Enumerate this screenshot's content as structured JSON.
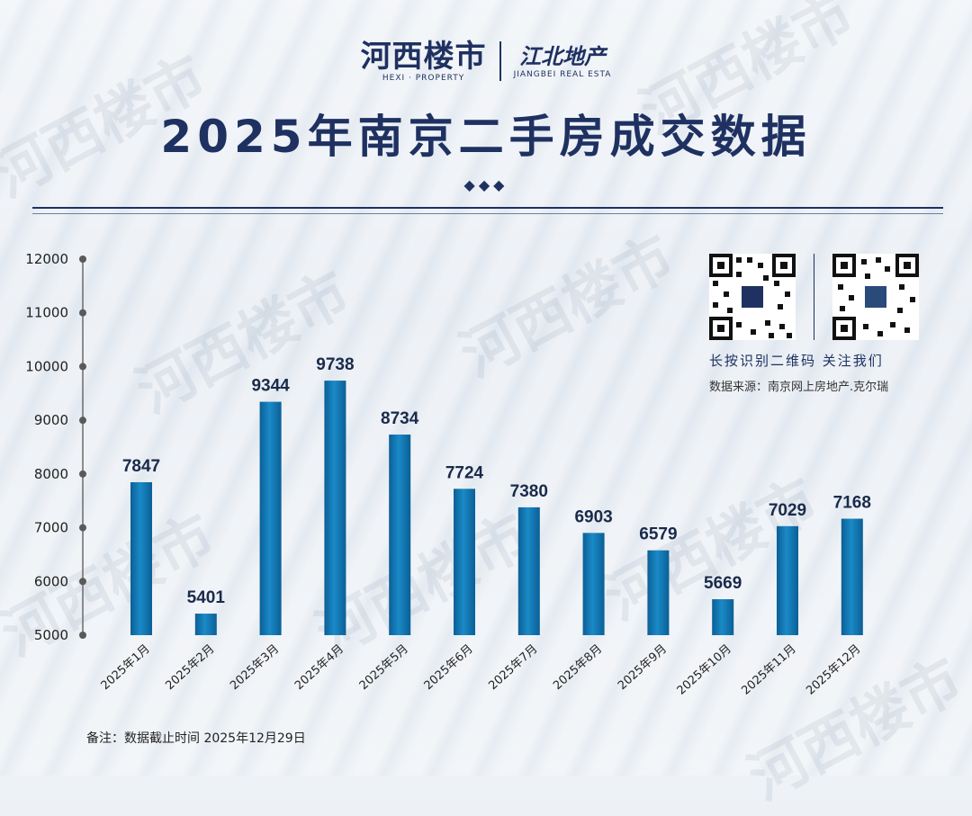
{
  "header": {
    "logo_main": "河西楼市",
    "logo_sub": "HEXI · PROPERTY",
    "logo2_main": "江北地产",
    "logo2_sub": "JIANGBEI REAL ESTA"
  },
  "title": "2025年南京二手房成交数据",
  "decoration": "◆◆◆",
  "qr": {
    "caption": "长按识别二维码  关注我们",
    "source": "数据来源：南京网上房地产.克尔瑞"
  },
  "note": "备注：数据截止时间 2025年12月29日",
  "colors": {
    "bar": "#1a8ac7",
    "bar_dark": "#0b5f96",
    "title": "#1e3161"
  },
  "chart_data": {
    "type": "bar",
    "categories": [
      "2025年1月",
      "2025年2月",
      "2025年3月",
      "2025年4月",
      "2025年5月",
      "2025年6月",
      "2025年7月",
      "2025年8月",
      "2025年9月",
      "2025年10月",
      "2025年11月",
      "2025年12月"
    ],
    "values": [
      7847,
      5401,
      9344,
      9738,
      8734,
      7724,
      7380,
      6903,
      6579,
      5669,
      7029,
      7168
    ],
    "yticks": [
      5000,
      6000,
      7000,
      8000,
      9000,
      10000,
      11000,
      12000
    ],
    "ylim": [
      5000,
      12000
    ],
    "title": "",
    "xlabel": "",
    "ylabel": "",
    "grid": false
  }
}
